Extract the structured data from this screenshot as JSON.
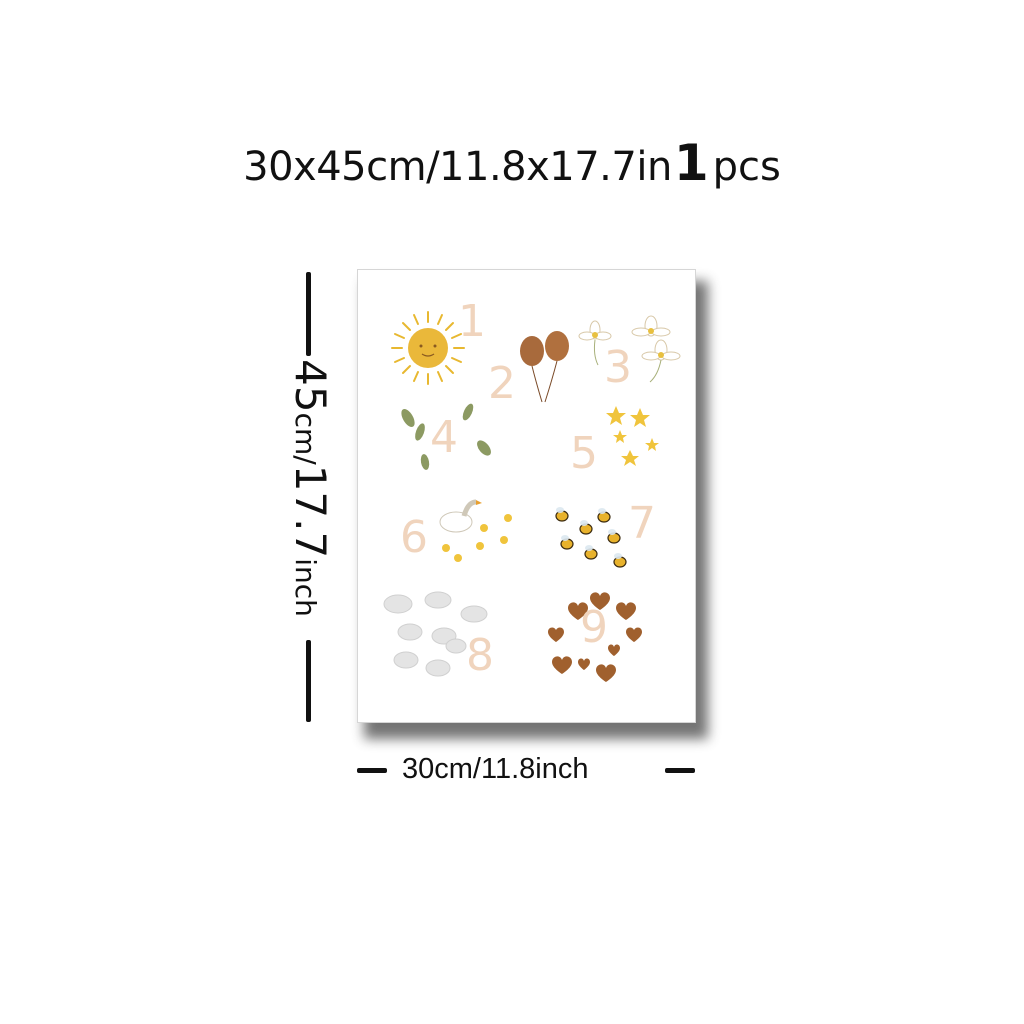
{
  "header": {
    "dimensions": "30x45cm/11.8x17.7in",
    "quantity": "1",
    "quantity_unit": "pcs"
  },
  "height_label": {
    "value": "45",
    "unit": "cm/",
    "value_inch": "17.7",
    "unit_inch": "inch"
  },
  "width_label": "30cm/11.8inch",
  "poster": {
    "numbers": [
      "1",
      "2",
      "3",
      "4",
      "5",
      "6",
      "7",
      "8",
      "9"
    ],
    "items": [
      "sun",
      "balloons",
      "daisies",
      "leaves",
      "stars",
      "goose-and-ducklings",
      "bees",
      "clouds",
      "hearts"
    ],
    "colors": {
      "numeral": "#f0d4bd",
      "sun": "#e8b830",
      "balloon": "#a86a3c",
      "leaf": "#8c9a62",
      "star": "#f0c43c",
      "bee": "#e8b22c",
      "cloud": "#e4e4e4",
      "heart": "#a0602e"
    }
  }
}
